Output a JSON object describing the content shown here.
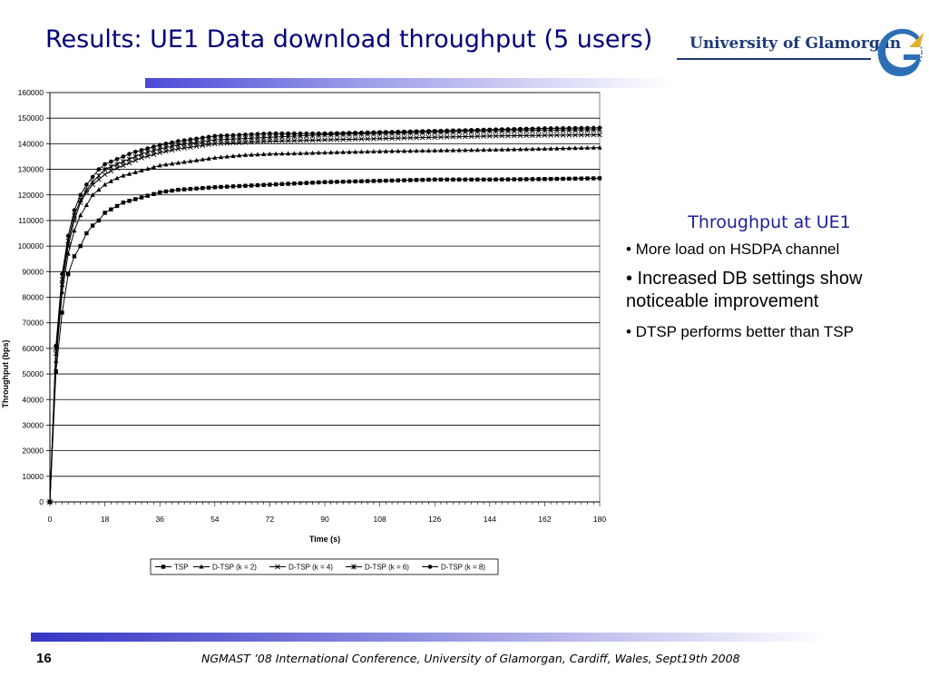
{
  "slide": {
    "title": "Results: UE1 Data download throughput (5 users)",
    "logo_text": "University of Glamorgan",
    "accent": "#00007a"
  },
  "side_panel": {
    "heading": "Throughput at UE1",
    "bullets": [
      "• More load on HSDPA channel",
      "• Increased DB settings show noticeable improvement",
      "• DTSP performs better than TSP"
    ]
  },
  "footer": {
    "page": "16",
    "text": "NGMAST ’08 International Conference, University of Glamorgan, Cardiff,  Wales, Sept19th  2008"
  },
  "chart_data": {
    "type": "line",
    "xlabel": "Time (s)",
    "ylabel": "Throughput (bps)",
    "xlim": [
      0,
      180
    ],
    "ylim": [
      0,
      160000
    ],
    "xticks": [
      0,
      18,
      36,
      54,
      72,
      90,
      108,
      126,
      144,
      162,
      180
    ],
    "yticks": [
      0,
      10000,
      20000,
      30000,
      40000,
      50000,
      60000,
      70000,
      80000,
      90000,
      100000,
      110000,
      120000,
      130000,
      140000,
      150000,
      160000
    ],
    "grid": "horizontal",
    "legend": "bottom",
    "series": [
      {
        "name": "TSP",
        "marker": "square",
        "points": [
          [
            0,
            0
          ],
          [
            2,
            51000
          ],
          [
            4,
            74000
          ],
          [
            6,
            89000
          ],
          [
            8,
            96000
          ],
          [
            10,
            100000
          ],
          [
            12,
            105000
          ],
          [
            14,
            108000
          ],
          [
            16,
            110000
          ],
          [
            18,
            113000
          ],
          [
            21,
            115000
          ],
          [
            24,
            117000
          ],
          [
            27,
            118000
          ],
          [
            30,
            119000
          ],
          [
            33,
            120000
          ],
          [
            36,
            121000
          ],
          [
            42,
            122000
          ],
          [
            48,
            122500
          ],
          [
            54,
            123000
          ],
          [
            63,
            123500
          ],
          [
            72,
            124000
          ],
          [
            81,
            124500
          ],
          [
            90,
            125000
          ],
          [
            108,
            125500
          ],
          [
            126,
            126000
          ],
          [
            144,
            126000
          ],
          [
            162,
            126200
          ],
          [
            180,
            126500
          ]
        ]
      },
      {
        "name": "D-TSP (k = 2)",
        "marker": "triangle",
        "points": [
          [
            0,
            0
          ],
          [
            2,
            55000
          ],
          [
            4,
            82000
          ],
          [
            6,
            97000
          ],
          [
            8,
            106000
          ],
          [
            10,
            112000
          ],
          [
            12,
            116000
          ],
          [
            14,
            120000
          ],
          [
            16,
            122000
          ],
          [
            18,
            124000
          ],
          [
            21,
            126000
          ],
          [
            24,
            127500
          ],
          [
            27,
            128500
          ],
          [
            30,
            129500
          ],
          [
            33,
            130500
          ],
          [
            36,
            131500
          ],
          [
            42,
            132500
          ],
          [
            48,
            133500
          ],
          [
            54,
            134500
          ],
          [
            63,
            135500
          ],
          [
            72,
            136000
          ],
          [
            81,
            136200
          ],
          [
            90,
            136500
          ],
          [
            108,
            137000
          ],
          [
            126,
            137300
          ],
          [
            144,
            137600
          ],
          [
            162,
            138000
          ],
          [
            180,
            138500
          ]
        ]
      },
      {
        "name": "D-TSP (k = 4)",
        "marker": "cross",
        "points": [
          [
            0,
            0
          ],
          [
            2,
            58000
          ],
          [
            4,
            85000
          ],
          [
            6,
            100000
          ],
          [
            8,
            110000
          ],
          [
            10,
            117000
          ],
          [
            12,
            121000
          ],
          [
            14,
            124000
          ],
          [
            16,
            126000
          ],
          [
            18,
            128000
          ],
          [
            21,
            130000
          ],
          [
            24,
            131500
          ],
          [
            27,
            133000
          ],
          [
            30,
            134500
          ],
          [
            33,
            135500
          ],
          [
            36,
            136500
          ],
          [
            42,
            138000
          ],
          [
            48,
            139000
          ],
          [
            54,
            140000
          ],
          [
            63,
            140500
          ],
          [
            72,
            141000
          ],
          [
            81,
            141200
          ],
          [
            90,
            141500
          ],
          [
            108,
            142000
          ],
          [
            126,
            142500
          ],
          [
            144,
            143000
          ],
          [
            162,
            143300
          ],
          [
            180,
            143500
          ]
        ]
      },
      {
        "name": "D-TSP (k = 6)",
        "marker": "star",
        "points": [
          [
            0,
            0
          ],
          [
            2,
            60000
          ],
          [
            4,
            87000
          ],
          [
            6,
            102000
          ],
          [
            8,
            112000
          ],
          [
            10,
            118000
          ],
          [
            12,
            122000
          ],
          [
            14,
            125000
          ],
          [
            16,
            127500
          ],
          [
            18,
            130000
          ],
          [
            21,
            131500
          ],
          [
            24,
            133000
          ],
          [
            27,
            134500
          ],
          [
            30,
            136000
          ],
          [
            33,
            137000
          ],
          [
            36,
            138000
          ],
          [
            42,
            139500
          ],
          [
            48,
            140500
          ],
          [
            54,
            141500
          ],
          [
            63,
            142000
          ],
          [
            72,
            142500
          ],
          [
            81,
            143000
          ],
          [
            90,
            143500
          ],
          [
            108,
            144000
          ],
          [
            126,
            144500
          ],
          [
            144,
            145000
          ],
          [
            162,
            145300
          ],
          [
            180,
            145500
          ]
        ]
      },
      {
        "name": "D-TSP (k = 8)",
        "marker": "circle",
        "points": [
          [
            0,
            0
          ],
          [
            2,
            61000
          ],
          [
            4,
            89000
          ],
          [
            6,
            104000
          ],
          [
            8,
            114000
          ],
          [
            10,
            120000
          ],
          [
            12,
            124000
          ],
          [
            14,
            127000
          ],
          [
            16,
            130000
          ],
          [
            18,
            132000
          ],
          [
            21,
            133500
          ],
          [
            24,
            135000
          ],
          [
            27,
            136500
          ],
          [
            30,
            137500
          ],
          [
            33,
            138500
          ],
          [
            36,
            139500
          ],
          [
            42,
            141000
          ],
          [
            48,
            142000
          ],
          [
            54,
            143000
          ],
          [
            63,
            143500
          ],
          [
            72,
            144000
          ],
          [
            81,
            144000
          ],
          [
            90,
            144000
          ],
          [
            108,
            144500
          ],
          [
            126,
            145000
          ],
          [
            144,
            145500
          ],
          [
            162,
            146000
          ],
          [
            180,
            146200
          ]
        ]
      }
    ]
  }
}
